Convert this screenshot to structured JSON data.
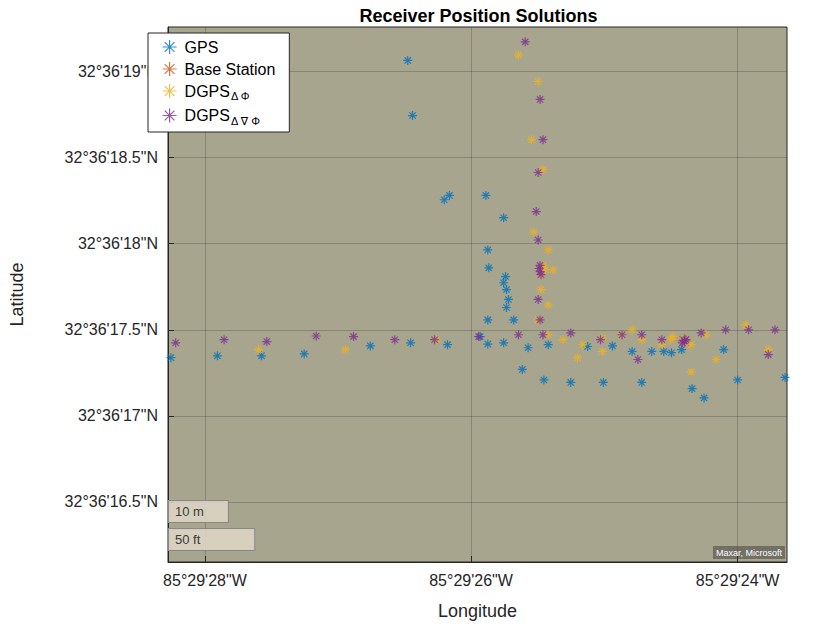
{
  "chart_data": {
    "type": "scatter",
    "title": "Receiver Position Solutions",
    "x_label": "Longitude",
    "y_label": "Latitude",
    "xlim": [
      -85.491188,
      -85.489897
    ],
    "ylim": [
      32.604486,
      32.60535
    ],
    "xticks": [
      {
        "value": -85.491111,
        "label": "85°29'28\"W"
      },
      {
        "value": -85.490556,
        "label": "85°29'26\"W"
      },
      {
        "value": -85.49,
        "label": "85°29'24\"W"
      }
    ],
    "yticks": [
      {
        "value": 32.604583,
        "label": "32°36'16.5\"N"
      },
      {
        "value": 32.604722,
        "label": "32°36'17\"N"
      },
      {
        "value": 32.604861,
        "label": "32°36'17.5\"N"
      },
      {
        "value": 32.605,
        "label": "32°36'18\"N"
      },
      {
        "value": 32.605139,
        "label": "32°36'18.5\"N"
      },
      {
        "value": 32.605278,
        "label": "32°36'19\"N"
      }
    ],
    "grid": true,
    "legend": "top-left",
    "annotations": [
      "10 m",
      "50 ft",
      "Maxar, Microsoft"
    ],
    "series": [
      {
        "name": "GPS",
        "color": "#0072bd",
        "marker": "asterisk",
        "values": [
          [
            -85.491182,
            32.604816
          ],
          [
            -85.491085,
            32.604819
          ],
          [
            -85.490993,
            32.604819
          ],
          [
            -85.490904,
            32.604822
          ],
          [
            -85.490766,
            32.604835
          ],
          [
            -85.490682,
            32.60484
          ],
          [
            -85.490605,
            32.604837
          ],
          [
            -85.490688,
            32.605296
          ],
          [
            -85.490678,
            32.605207
          ],
          [
            -85.490612,
            32.605071
          ],
          [
            -85.490601,
            32.605078
          ],
          [
            -85.490525,
            32.605078
          ],
          [
            -85.490488,
            32.605042
          ],
          [
            -85.490521,
            32.60499
          ],
          [
            -85.490519,
            32.604961
          ],
          [
            -85.490484,
            32.604947
          ],
          [
            -85.490482,
            32.604926
          ],
          [
            -85.490478,
            32.60491
          ],
          [
            -85.490482,
            32.604897
          ],
          [
            -85.490521,
            32.604877
          ],
          [
            -85.490537,
            32.60485
          ],
          [
            -85.490521,
            32.604838
          ],
          [
            -85.490488,
            32.60484
          ],
          [
            -85.490449,
            32.604797
          ],
          [
            -85.490404,
            32.60478
          ],
          [
            -85.490348,
            32.604776
          ],
          [
            -85.49028,
            32.604776
          ],
          [
            -85.4902,
            32.604776
          ],
          [
            -85.490095,
            32.604766
          ],
          [
            -85.49007,
            32.604751
          ],
          [
            -85.49,
            32.60478
          ],
          [
            -85.489901,
            32.604784
          ],
          [
            -85.490395,
            32.604837
          ],
          [
            -85.490313,
            32.604834
          ],
          [
            -85.490261,
            32.604835
          ],
          [
            -85.49022,
            32.604826
          ],
          [
            -85.490179,
            32.604826
          ],
          [
            -85.490154,
            32.604826
          ],
          [
            -85.490117,
            32.604829
          ],
          [
            -85.490138,
            32.604824
          ],
          [
            -85.490029,
            32.604829
          ],
          [
            -85.490437,
            32.604832
          ],
          [
            -85.490467,
            32.604877
          ],
          [
            -85.490488,
            32.604937
          ]
        ]
      },
      {
        "name": "Base Station",
        "color": "#d95319",
        "marker": "asterisk",
        "values": [
          [
            -85.490111,
            32.604843
          ]
        ]
      },
      {
        "name": "DGPSΔ Φ",
        "color": "#edb120",
        "marker": "asterisk",
        "values": [
          [
            -85.490457,
            32.605305
          ],
          [
            -85.490416,
            32.605262
          ],
          [
            -85.49043,
            32.605168
          ],
          [
            -85.490406,
            32.60512
          ],
          [
            -85.490426,
            32.605019
          ],
          [
            -85.490395,
            32.60499
          ],
          [
            -85.490385,
            32.604958
          ],
          [
            -85.49041,
            32.604926
          ],
          [
            -85.490395,
            32.604901
          ],
          [
            -85.490416,
            32.604877
          ],
          [
            -85.490395,
            32.604853
          ],
          [
            -85.490364,
            32.604845
          ],
          [
            -85.490323,
            32.604837
          ],
          [
            -85.490282,
            32.604848
          ],
          [
            -85.490241,
            32.604853
          ],
          [
            -85.4902,
            32.604845
          ],
          [
            -85.490158,
            32.604837
          ],
          [
            -85.490097,
            32.604837
          ],
          [
            -85.490045,
            32.604813
          ],
          [
            -85.489983,
            32.604869
          ],
          [
            -85.489936,
            32.604829
          ],
          [
            -85.490097,
            32.604793
          ],
          [
            -85.490282,
            32.604826
          ],
          [
            -85.490334,
            32.604816
          ],
          [
            -85.490401,
            32.604958
          ],
          [
            -85.490818,
            32.604829
          ],
          [
            -85.490999,
            32.604829
          ],
          [
            -85.490628,
            32.604845
          ],
          [
            -85.490066,
            32.604853
          ],
          [
            -85.49022,
            32.604861
          ],
          [
            -85.490412,
            32.60496
          ],
          [
            -85.490405,
            32.604965
          ],
          [
            -85.49041,
            32.60495
          ],
          [
            -85.490135,
            32.60485
          ],
          [
            -85.49014,
            32.604845
          ]
        ]
      },
      {
        "name": "DGPSΔ ∇ Φ",
        "color": "#7e2f8e",
        "marker": "asterisk",
        "values": [
          [
            -85.490443,
            32.605326
          ],
          [
            -85.490412,
            32.605233
          ],
          [
            -85.490406,
            32.605168
          ],
          [
            -85.490416,
            32.605115
          ],
          [
            -85.49042,
            32.605052
          ],
          [
            -85.490416,
            32.605006
          ],
          [
            -85.490412,
            32.604955
          ],
          [
            -85.490414,
            32.60496
          ],
          [
            -85.49041,
            32.60495
          ],
          [
            -85.490412,
            32.604965
          ],
          [
            -85.490416,
            32.60491
          ],
          [
            -85.490412,
            32.604877
          ],
          [
            -85.490406,
            32.604853
          ],
          [
            -85.490348,
            32.604856
          ],
          [
            -85.490286,
            32.604845
          ],
          [
            -85.490241,
            32.604853
          ],
          [
            -85.4902,
            32.604853
          ],
          [
            -85.490158,
            32.604845
          ],
          [
            -85.490111,
            32.604843
          ],
          [
            -85.490115,
            32.60484
          ],
          [
            -85.490108,
            32.604845
          ],
          [
            -85.490076,
            32.604856
          ],
          [
            -85.490025,
            32.604861
          ],
          [
            -85.489977,
            32.604861
          ],
          [
            -85.489922,
            32.604861
          ],
          [
            -85.489936,
            32.604821
          ],
          [
            -85.490208,
            32.604813
          ],
          [
            -85.491172,
            32.60484
          ],
          [
            -85.491071,
            32.604845
          ],
          [
            -85.490982,
            32.604842
          ],
          [
            -85.490879,
            32.604851
          ],
          [
            -85.490801,
            32.60485
          ],
          [
            -85.490715,
            32.604845
          ],
          [
            -85.490632,
            32.604845
          ],
          [
            -85.49054,
            32.60485
          ],
          [
            -85.490457,
            32.604853
          ]
        ]
      }
    ]
  }
}
